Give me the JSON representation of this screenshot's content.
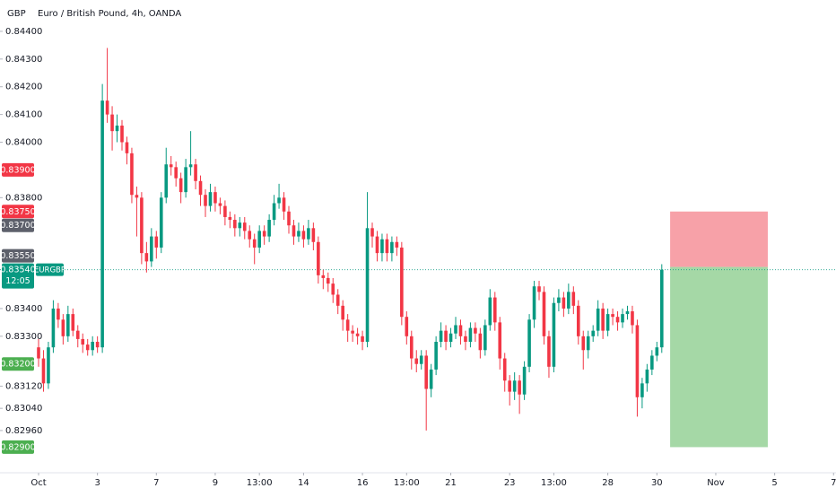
{
  "chart_data": {
    "type": "candlestick",
    "title": "Euro / British Pound, 4h, OANDA",
    "currency": "GBP",
    "up_color": "#089981",
    "down_color": "#f23645",
    "open": [
      0.8326,
      0.8322,
      0.8313,
      0.8326,
      0.834,
      0.8336,
      0.833,
      0.8338,
      0.8332,
      0.8329,
      0.8327,
      0.8325,
      0.8328,
      0.8326,
      0.8415,
      0.841,
      0.8404,
      0.8406,
      0.84,
      0.8396,
      0.8381,
      0.838,
      0.836,
      0.8357,
      0.8366,
      0.8362,
      0.838,
      0.8392,
      0.8391,
      0.8387,
      0.8382,
      0.8391,
      0.8392,
      0.8386,
      0.8381,
      0.8377,
      0.8382,
      0.8378,
      0.8377,
      0.8373,
      0.8372,
      0.8369,
      0.8371,
      0.8368,
      0.8365,
      0.8362,
      0.8368,
      0.8366,
      0.8372,
      0.8378,
      0.838,
      0.8375,
      0.837,
      0.8366,
      0.8368,
      0.8365,
      0.8369,
      0.8364,
      0.8352,
      0.8351,
      0.8349,
      0.8345,
      0.8341,
      0.8336,
      0.8332,
      0.8331,
      0.833,
      0.8328,
      0.8369,
      0.8366,
      0.836,
      0.8365,
      0.836,
      0.8364,
      0.8362,
      0.8337,
      0.833,
      0.8322,
      0.832,
      0.8323,
      0.8311,
      0.8318,
      0.8328,
      0.8332,
      0.8328,
      0.8331,
      0.8334,
      0.833,
      0.8328,
      0.8333,
      0.8331,
      0.8325,
      0.8334,
      0.8344,
      0.8335,
      0.8322,
      0.8314,
      0.831,
      0.8314,
      0.8309,
      0.8319,
      0.8336,
      0.8348,
      0.8346,
      0.833,
      0.8319,
      0.8342,
      0.8344,
      0.834,
      0.8346,
      0.8341,
      0.833,
      0.8325,
      0.833,
      0.8332,
      0.834,
      0.8332,
      0.8338,
      0.8337,
      0.8335,
      0.8338,
      0.8339,
      0.8334,
      0.8308,
      0.8313,
      0.8318,
      0.8323,
      0.8326
    ],
    "high": [
      0.8329,
      0.8325,
      0.8328,
      0.8343,
      0.8342,
      0.8338,
      0.8341,
      0.834,
      0.8334,
      0.8331,
      0.8329,
      0.833,
      0.833,
      0.8421,
      0.8434,
      0.8413,
      0.841,
      0.8408,
      0.8402,
      0.8398,
      0.8384,
      0.8382,
      0.8364,
      0.8369,
      0.8368,
      0.8382,
      0.8398,
      0.8395,
      0.8393,
      0.8389,
      0.8394,
      0.8404,
      0.8394,
      0.8388,
      0.8383,
      0.8385,
      0.8384,
      0.838,
      0.8379,
      0.8375,
      0.8374,
      0.8373,
      0.8373,
      0.837,
      0.8367,
      0.837,
      0.837,
      0.8374,
      0.8381,
      0.8385,
      0.8382,
      0.8377,
      0.8372,
      0.8371,
      0.837,
      0.8372,
      0.8371,
      0.8366,
      0.8354,
      0.8353,
      0.8351,
      0.8347,
      0.8343,
      0.8338,
      0.8334,
      0.8333,
      0.8332,
      0.8382,
      0.8371,
      0.8368,
      0.8367,
      0.8367,
      0.8366,
      0.8366,
      0.8364,
      0.8339,
      0.8332,
      0.8325,
      0.8325,
      0.8325,
      0.832,
      0.833,
      0.8335,
      0.8334,
      0.8333,
      0.8337,
      0.8336,
      0.8332,
      0.8335,
      0.8335,
      0.8333,
      0.8336,
      0.8347,
      0.8346,
      0.8337,
      0.8324,
      0.8316,
      0.8317,
      0.8316,
      0.8321,
      0.8338,
      0.835,
      0.835,
      0.8348,
      0.8332,
      0.8344,
      0.8347,
      0.8346,
      0.8349,
      0.8348,
      0.8343,
      0.8332,
      0.8332,
      0.8334,
      0.8343,
      0.8342,
      0.834,
      0.834,
      0.8339,
      0.834,
      0.8341,
      0.8341,
      0.8336,
      0.8315,
      0.832,
      0.8325,
      0.8328,
      0.8356
    ],
    "low": [
      0.8319,
      0.831,
      0.8311,
      0.8324,
      0.8333,
      0.8327,
      0.8328,
      0.833,
      0.8326,
      0.8324,
      0.8323,
      0.8323,
      0.8324,
      0.8324,
      0.8407,
      0.8397,
      0.84,
      0.8397,
      0.8392,
      0.8378,
      0.8366,
      0.8356,
      0.8353,
      0.8355,
      0.8358,
      0.836,
      0.8378,
      0.8388,
      0.8384,
      0.8378,
      0.838,
      0.8388,
      0.8383,
      0.8377,
      0.8373,
      0.8375,
      0.8375,
      0.8374,
      0.837,
      0.8369,
      0.8366,
      0.8366,
      0.8365,
      0.8362,
      0.8356,
      0.836,
      0.8363,
      0.8364,
      0.837,
      0.8376,
      0.8372,
      0.8367,
      0.8363,
      0.8364,
      0.8362,
      0.8363,
      0.8361,
      0.8349,
      0.8347,
      0.8346,
      0.8342,
      0.8338,
      0.8332,
      0.8328,
      0.8328,
      0.8327,
      0.8325,
      0.8326,
      0.8362,
      0.8357,
      0.8357,
      0.8357,
      0.8357,
      0.8359,
      0.8334,
      0.8327,
      0.8318,
      0.8317,
      0.8318,
      0.8296,
      0.8308,
      0.8316,
      0.8326,
      0.8325,
      0.8326,
      0.8329,
      0.8327,
      0.8325,
      0.8326,
      0.8328,
      0.8322,
      0.8323,
      0.8332,
      0.8332,
      0.8318,
      0.831,
      0.8305,
      0.8307,
      0.8302,
      0.8307,
      0.8317,
      0.8333,
      0.8343,
      0.8327,
      0.8315,
      0.8317,
      0.8339,
      0.8337,
      0.8338,
      0.8338,
      0.8327,
      0.8318,
      0.8322,
      0.8328,
      0.833,
      0.8329,
      0.833,
      0.8334,
      0.8332,
      0.8333,
      0.8336,
      0.8331,
      0.8301,
      0.8304,
      0.831,
      0.8316,
      0.8321,
      0.8324
    ],
    "close": [
      0.8322,
      0.8313,
      0.8326,
      0.834,
      0.8336,
      0.833,
      0.8338,
      0.8332,
      0.8329,
      0.8327,
      0.8325,
      0.8328,
      0.8326,
      0.8415,
      0.841,
      0.8404,
      0.8406,
      0.84,
      0.8396,
      0.8381,
      0.838,
      0.836,
      0.8357,
      0.8366,
      0.8362,
      0.838,
      0.8392,
      0.8391,
      0.8387,
      0.8382,
      0.8391,
      0.8392,
      0.8386,
      0.8381,
      0.8377,
      0.8382,
      0.8378,
      0.8377,
      0.8373,
      0.8372,
      0.8369,
      0.8371,
      0.8368,
      0.8365,
      0.8362,
      0.8368,
      0.8366,
      0.8372,
      0.8378,
      0.838,
      0.8375,
      0.837,
      0.8366,
      0.8368,
      0.8365,
      0.8369,
      0.8364,
      0.8352,
      0.8351,
      0.8349,
      0.8345,
      0.8341,
      0.8336,
      0.8332,
      0.8331,
      0.833,
      0.8328,
      0.8369,
      0.8366,
      0.836,
      0.8365,
      0.836,
      0.8364,
      0.8362,
      0.8337,
      0.833,
      0.8322,
      0.832,
      0.8323,
      0.8311,
      0.8318,
      0.8328,
      0.8332,
      0.8328,
      0.8331,
      0.8334,
      0.833,
      0.8328,
      0.8333,
      0.8331,
      0.8325,
      0.8334,
      0.8344,
      0.8335,
      0.8322,
      0.8314,
      0.831,
      0.8314,
      0.8309,
      0.8319,
      0.8336,
      0.8348,
      0.8346,
      0.833,
      0.8319,
      0.8342,
      0.8344,
      0.834,
      0.8346,
      0.8341,
      0.833,
      0.8325,
      0.833,
      0.8332,
      0.834,
      0.8332,
      0.8338,
      0.8337,
      0.8335,
      0.8338,
      0.8339,
      0.8334,
      0.8308,
      0.8313,
      0.8318,
      0.8323,
      0.8326,
      0.8354
    ],
    "xlim": [
      -7.86,
      162.5
    ],
    "xticks": [
      {
        "value": 0,
        "label": "Oct"
      },
      {
        "value": 12,
        "label": "3"
      },
      {
        "value": 24,
        "label": "7"
      },
      {
        "value": 36,
        "label": "9"
      },
      {
        "value": 45,
        "label": "13:00"
      },
      {
        "value": 54,
        "label": "14"
      },
      {
        "value": 66,
        "label": "16"
      },
      {
        "value": 75,
        "label": "13:00"
      },
      {
        "value": 84,
        "label": "21"
      },
      {
        "value": 96,
        "label": "23"
      },
      {
        "value": 105,
        "label": "13:00"
      },
      {
        "value": 116,
        "label": "28"
      },
      {
        "value": 126,
        "label": "30"
      },
      {
        "value": 138,
        "label": "Nov"
      },
      {
        "value": 150,
        "label": "5"
      },
      {
        "value": 162,
        "label": "7"
      }
    ],
    "ylim": [
      0.82814,
      0.84513
    ],
    "yticks": [
      {
        "value": 0.844,
        "label": "0.84400"
      },
      {
        "value": 0.843,
        "label": "0.84300"
      },
      {
        "value": 0.842,
        "label": "0.84200"
      },
      {
        "value": 0.841,
        "label": "0.84100"
      },
      {
        "value": 0.84,
        "label": "0.84000"
      },
      {
        "value": 0.838,
        "label": "0.83800"
      },
      {
        "value": 0.834,
        "label": "0.83400"
      },
      {
        "value": 0.833,
        "label": "0.83300"
      },
      {
        "value": 0.8312,
        "label": "0.83120"
      },
      {
        "value": 0.8304,
        "label": "0.83040"
      },
      {
        "value": 0.8296,
        "label": "0.82960"
      }
    ],
    "price_labels": [
      {
        "value": 0.839,
        "label": "0.83900",
        "color": "#f23645"
      },
      {
        "value": 0.8375,
        "label": "0.83750",
        "color": "#f23645"
      },
      {
        "value": 0.837,
        "label": "0.83700",
        "color": "#5d606b"
      },
      {
        "value": 0.8355,
        "label": "0.83550",
        "color": "#5d606b"
      },
      {
        "value": 0.832,
        "label": "0.83200",
        "color": "#4caf50"
      },
      {
        "value": 0.829,
        "label": "0.82900",
        "color": "#4caf50"
      }
    ],
    "last_price": {
      "value": 0.8354,
      "label": "0.83540",
      "symbol": "EURGBP",
      "countdown": "12:05",
      "color": "#089981"
    },
    "position": {
      "entry": 0.8355,
      "stop": 0.8375,
      "target": 0.829,
      "start": 128.7,
      "end": 148.6,
      "loss_color": "#f7a1a8",
      "profit_color": "#a5d8a6"
    }
  }
}
